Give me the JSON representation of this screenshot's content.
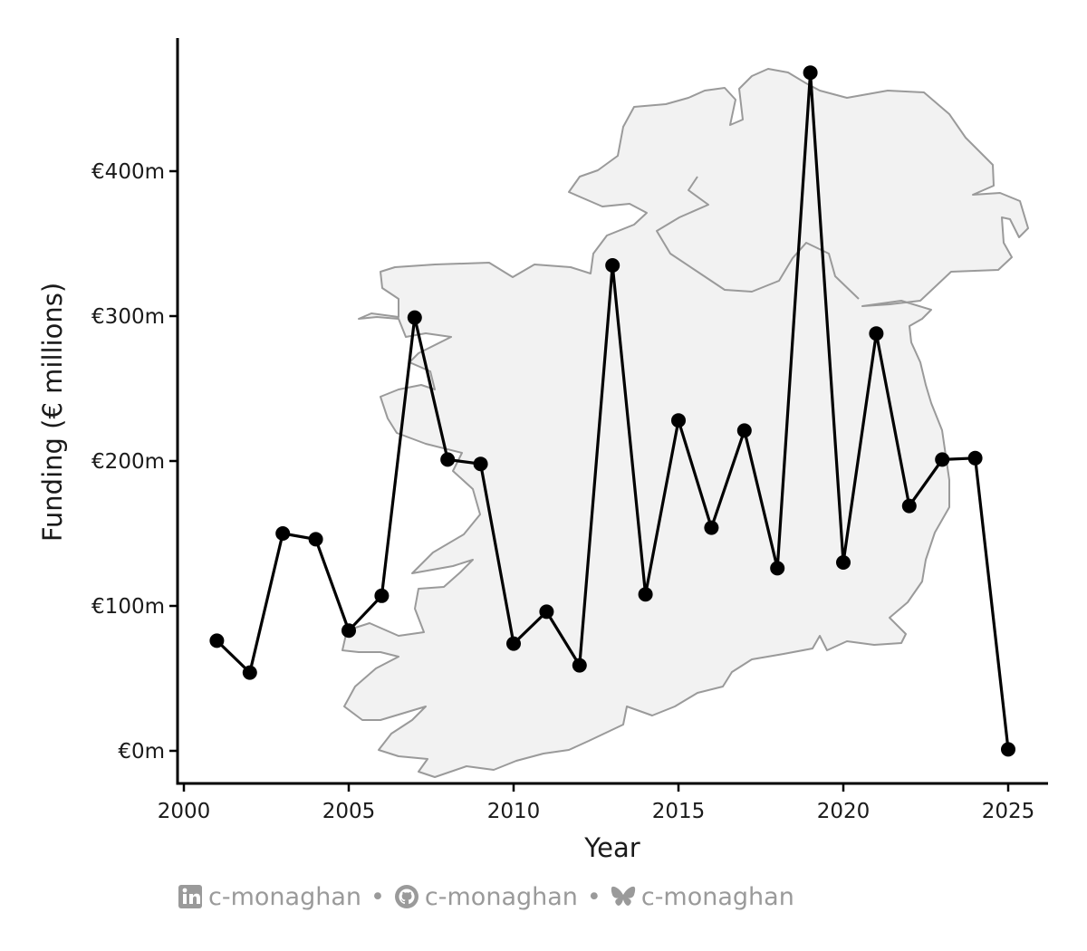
{
  "chart_data": {
    "type": "line",
    "title": "",
    "xlabel": "Year",
    "ylabel": "Funding (€ millions)",
    "xlim": [
      2000,
      2025
    ],
    "ylim": [
      0,
      470
    ],
    "x_ticks": [
      2000,
      2005,
      2010,
      2015,
      2020,
      2025
    ],
    "y_ticks": [
      0,
      100,
      200,
      300,
      400
    ],
    "y_tick_labels": [
      "€0m",
      "€100m",
      "€200m",
      "€300m",
      "€400m"
    ],
    "grid": false,
    "legend": "none",
    "background_shape": "map of Ireland",
    "colors": {
      "line": "#000000",
      "map_fill": "#f2f2f2",
      "map_stroke": "#9a9a9a"
    },
    "series": [
      {
        "x": [
          2001,
          2002,
          2003,
          2004,
          2005,
          2006,
          2007,
          2008,
          2009,
          2010,
          2011,
          2012,
          2013,
          2014,
          2015,
          2016,
          2017,
          2018,
          2019,
          2020,
          2021,
          2022,
          2023,
          2024,
          2025
        ],
        "y": [
          76,
          54,
          150,
          146,
          83,
          107,
          299,
          201,
          198,
          74,
          96,
          59,
          335,
          108,
          228,
          154,
          221,
          126,
          468,
          130,
          288,
          169,
          201,
          202,
          1
        ]
      }
    ]
  },
  "caption": {
    "items": [
      {
        "icon": "linkedin-icon",
        "text": "c-monaghan"
      },
      {
        "icon": "github-icon",
        "text": "c-monaghan"
      },
      {
        "icon": "bluesky-butterfly-icon",
        "text": "c-monaghan"
      }
    ],
    "separator": "•"
  }
}
